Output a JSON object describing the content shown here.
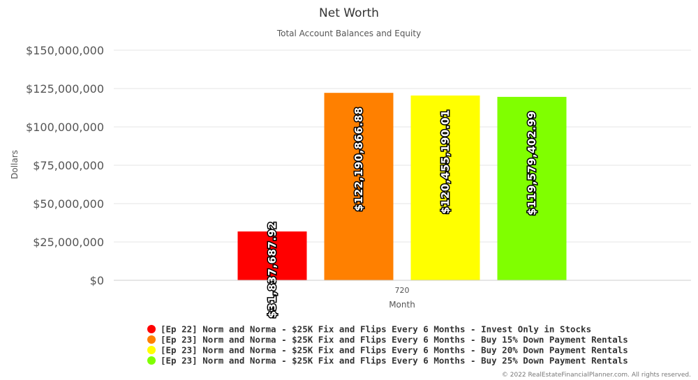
{
  "chart_data": {
    "type": "bar",
    "title": "Net Worth",
    "subtitle": "Total Account Balances and Equity",
    "xlabel": "Month",
    "ylabel": "Dollars",
    "categories": [
      "720"
    ],
    "ylim": [
      0,
      150000000
    ],
    "yticks": [
      0,
      25000000,
      50000000,
      75000000,
      100000000,
      125000000,
      150000000
    ],
    "ytick_labels": [
      "$0",
      "$25,000,000",
      "$50,000,000",
      "$75,000,000",
      "$100,000,000",
      "$125,000,000",
      "$150,000,000"
    ],
    "grid": true,
    "legend_position": "bottom",
    "series": [
      {
        "name": "[Ep 22] Norm and Norma - $25K Fix and Flips Every 6 Months - Invest Only in Stocks",
        "values": [
          31837687.92
        ],
        "label": "$31,837,687.92",
        "color": "#ff0000"
      },
      {
        "name": "[Ep 23] Norm and Norma - $25K Fix and Flips Every 6 Months - Buy 15% Down Payment Rentals",
        "values": [
          122190866.88
        ],
        "label": "$122,190,866.88",
        "color": "#ff8000"
      },
      {
        "name": "[Ep 23] Norm and Norma - $25K Fix and Flips Every 6 Months - Buy 20% Down Payment Rentals",
        "values": [
          120455190.01
        ],
        "label": "$120,455,190.01",
        "color": "#ffff00"
      },
      {
        "name": "[Ep 23] Norm and Norma - $25K Fix and Flips Every 6 Months - Buy 25% Down Payment Rentals",
        "values": [
          119579402.99
        ],
        "label": "$119,579,402.99",
        "color": "#80ff00"
      }
    ]
  },
  "credit": "© 2022 RealEstateFinancialPlanner.com. All rights reserved."
}
